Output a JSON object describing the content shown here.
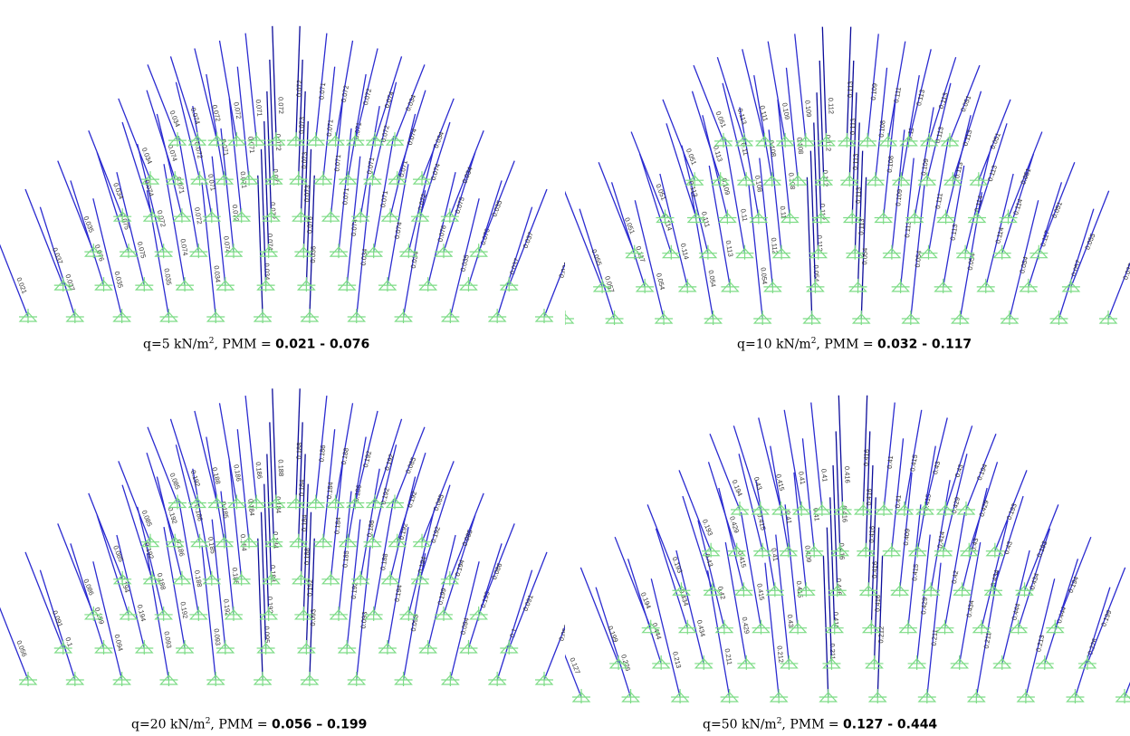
{
  "panels": [
    {
      "id": "q5",
      "caption": {
        "q_prefix": "q=5 kN/m",
        "exp": "2",
        "mid": ", PMM = ",
        "range": "0.021 - 0.076"
      },
      "rows": [
        [
          "0.021",
          "0.037",
          "0.035",
          "0.035",
          "0.034",
          "0.034",
          "0.036",
          "0.034",
          "0.034",
          "0.035",
          "0.037",
          "0.021"
        ],
        [
          "0.037",
          "0.076",
          "0.075",
          "0.074",
          "0.074",
          "0.074",
          "0.076",
          "0.074",
          "0.074",
          "0.076",
          "0.076",
          "0.037"
        ],
        [
          "0.035",
          "0.075",
          "0.072",
          "0.072",
          "0.072",
          "0.072",
          "0.073",
          "0.071",
          "0.071",
          "0.072",
          "0.075",
          "0.035"
        ],
        [
          "0.034",
          "0.074",
          "0.071",
          "0.071",
          "0.071",
          "0.071",
          "0.073",
          "0.071",
          "0.071",
          "0.071",
          "0.074",
          "0.034"
        ],
        [
          "0.034",
          "0.074",
          "0.072",
          "0.071",
          "0.071",
          "0.072",
          "0.073",
          "0.071",
          "0.071",
          "0.072",
          "0.074",
          "0.034"
        ],
        [
          "0.034",
          "0.074",
          "0.072",
          "0.072",
          "0.071",
          "0.072",
          "0.072",
          "0.071",
          "0.072",
          "0.072",
          "0.074",
          "0.034"
        ]
      ]
    },
    {
      "id": "q10",
      "caption": {
        "q_prefix": "q=10 kN/m",
        "exp": "2",
        "mid": ", PMM = ",
        "range": "0.032 - 0.117"
      },
      "rows": [
        [
          "0.032",
          "0.057",
          "0.054",
          "0.054",
          "0.054",
          "0.054",
          "0.054",
          "0.054",
          "0.054",
          "0.054",
          "0.057",
          "0.032"
        ],
        [
          "0.055",
          "0.117",
          "0.114",
          "0.113",
          "0.112",
          "0.112",
          "0.113",
          "0.113",
          "0.113",
          "0.114",
          "0.117",
          "0.055"
        ],
        [
          "0.051",
          "0.114",
          "0.111",
          "0.11",
          "0.11",
          "0.112",
          "0.113",
          "0.109",
          "0.111",
          "0.114",
          "0.114",
          "0.051"
        ],
        [
          "0.051",
          "0.113",
          "0.109",
          "0.108",
          "0.108",
          "0.112",
          "0.113",
          "0.108",
          "0.109",
          "0.113",
          "0.113",
          "0.051"
        ],
        [
          "0.051",
          "0.113",
          "0.11",
          "0.108",
          "0.108",
          "0.112",
          "0.113",
          "0.108",
          "0.11",
          "0.113",
          "0.113",
          "0.051"
        ],
        [
          "0.051",
          "0.113",
          "0.111",
          "0.109",
          "0.109",
          "0.112",
          "0.113",
          "0.109",
          "0.111",
          "0.113",
          "0.113",
          "0.051"
        ]
      ]
    },
    {
      "id": "q20",
      "caption": {
        "q_prefix": "q=20 kN/m",
        "exp": "2",
        "mid": ", PMM = ",
        "range": "0.056 – 0.199"
      },
      "rows": [
        [
          "0.056",
          "0.1",
          "0.094",
          "0.093",
          "0.093",
          "0.095",
          "0.093",
          "0.093",
          "0.093",
          "0.094",
          "0.1",
          "0.056"
        ],
        [
          "0.091",
          "0.199",
          "0.194",
          "0.192",
          "0.192",
          "0.192",
          "0.192",
          "0.192",
          "0.194",
          "0.199",
          "0.199",
          "0.091"
        ],
        [
          "0.086",
          "0.194",
          "0.188",
          "0.188",
          "0.185",
          "0.188",
          "0.188",
          "0.185",
          "0.188",
          "0.194",
          "0.194",
          "0.086"
        ],
        [
          "0.085",
          "0.192",
          "0.186",
          "0.185",
          "0.184",
          "0.184",
          "0.184",
          "0.184",
          "0.186",
          "0.192",
          "0.192",
          "0.085"
        ],
        [
          "0.085",
          "0.192",
          "0.186",
          "0.185",
          "0.184",
          "0.184",
          "0.184",
          "0.184",
          "0.186",
          "0.192",
          "0.192",
          "0.085"
        ],
        [
          "0.085",
          "0.192",
          "0.188",
          "0.186",
          "0.186",
          "0.188",
          "0.188",
          "0.186",
          "0.188",
          "0.192",
          "0.192",
          "0.085"
        ]
      ]
    },
    {
      "id": "q50",
      "caption": {
        "q_prefix": "q=50 kN/m",
        "exp": "2",
        "mid": ", PMM = ",
        "range": "0.127 - 0.444"
      },
      "rows": [
        [
          "0.127",
          "0.226",
          "0.213",
          "0.211",
          "0.212",
          "0.211",
          "0.212",
          "0.211",
          "0.211",
          "0.213",
          "0.226",
          "0.127"
        ],
        [
          "0.199",
          "0.444",
          "0.434",
          "0.429",
          "0.43",
          "0.416",
          "0.416",
          "0.429",
          "0.434",
          "0.444",
          "0.444",
          "0.199"
        ],
        [
          "0.194",
          "0.434",
          "0.42",
          "0.415",
          "0.415",
          "0.416",
          "0.416",
          "0.415",
          "0.42",
          "0.434",
          "0.434",
          "0.194"
        ],
        [
          "0.193",
          "0.43",
          "0.415",
          "0.41",
          "0.409",
          "0.416",
          "0.416",
          "0.409",
          "0.414",
          "0.43",
          "0.43",
          "0.193"
        ],
        [
          "0.193",
          "0.429",
          "0.415",
          "0.41",
          "0.41",
          "0.416",
          "0.416",
          "0.41",
          "0.415",
          "0.429",
          "0.429",
          "0.193"
        ],
        [
          "0.194",
          "0.43",
          "0.415",
          "0.41",
          "0.41",
          "0.416",
          "0.416",
          "0.41",
          "0.415",
          "0.43",
          "0.43",
          "0.194"
        ]
      ]
    }
  ],
  "colors": {
    "member": "#2b2bd0",
    "member_dark": "#0b0b9a",
    "support": "#7ddc86",
    "label": "#333333"
  }
}
